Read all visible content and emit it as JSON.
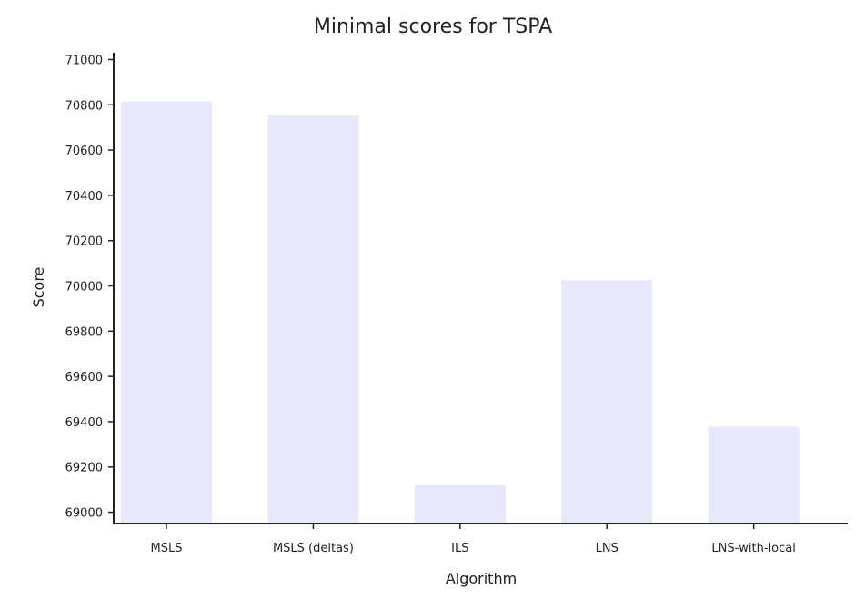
{
  "chart_data": {
    "type": "bar",
    "title": "Minimal scores for TSPA",
    "xlabel": "Algorithm",
    "ylabel": "Score",
    "categories": [
      "MSLS",
      "MSLS (deltas)",
      "ILS",
      "LNS",
      "LNS-with-local"
    ],
    "values": [
      70815,
      70755,
      69120,
      70025,
      69378
    ],
    "ylim": [
      68950,
      71030
    ],
    "yticks": [
      69000,
      69200,
      69400,
      69600,
      69800,
      70000,
      70200,
      70400,
      70600,
      70800,
      71000
    ],
    "bar_color": "#e8e8fb",
    "grid": false
  }
}
